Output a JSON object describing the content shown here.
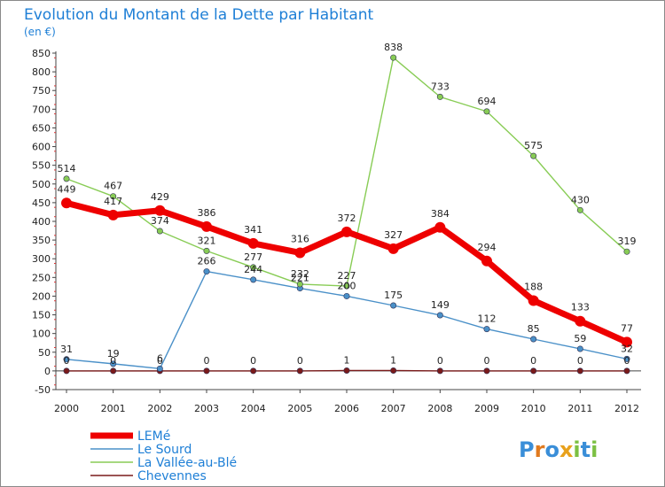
{
  "chart_data": {
    "type": "line",
    "title": "Evolution du Montant de la Dette par Habitant",
    "subtitle": "(en €)",
    "x": [
      "2000",
      "2001",
      "2002",
      "2003",
      "2004",
      "2005",
      "2006",
      "2007",
      "2008",
      "2009",
      "2010",
      "2011",
      "2012"
    ],
    "ylim": [
      -50,
      850
    ],
    "yticks": [
      -50,
      0,
      50,
      100,
      150,
      200,
      250,
      300,
      350,
      400,
      450,
      500,
      550,
      600,
      650,
      700,
      750,
      800,
      850
    ],
    "grid": false,
    "legend_position": "bottom-left",
    "series": [
      {
        "name": "LEMé",
        "color": "#ee0000",
        "values": [
          449,
          417,
          429,
          386,
          341,
          316,
          372,
          327,
          384,
          294,
          188,
          133,
          77
        ]
      },
      {
        "name": "Le Sourd",
        "color": "#4a90c8",
        "values": [
          31,
          19,
          6,
          266,
          244,
          221,
          200,
          175,
          149,
          112,
          85,
          59,
          32
        ]
      },
      {
        "name": "La Vallée-au-Blé",
        "color": "#88cc55",
        "values": [
          514,
          467,
          374,
          321,
          277,
          232,
          227,
          838,
          733,
          694,
          575,
          430,
          319
        ]
      },
      {
        "name": "Chevennes",
        "color": "#7a1a1a",
        "values": [
          0,
          0,
          0,
          0,
          0,
          0,
          1,
          1,
          0,
          0,
          0,
          0,
          0
        ]
      }
    ]
  },
  "logo": {
    "text": "Proxiti"
  }
}
